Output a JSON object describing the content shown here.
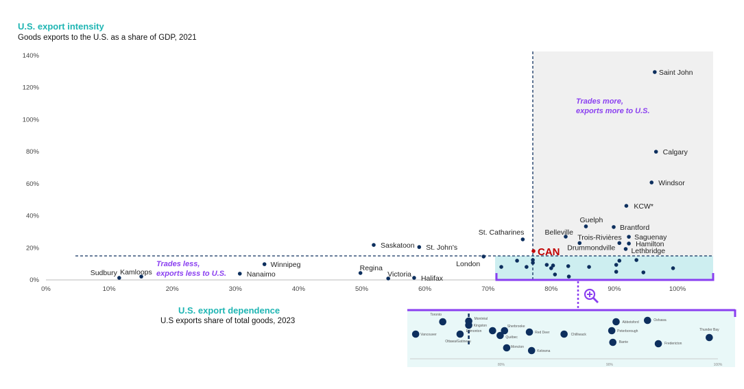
{
  "title": "U.S. export intensity",
  "subtitle": "Goods exports to the U.S. as a share of GDP, 2021",
  "x_title": "U.S. export dependence",
  "x_subtitle": "U.S exports share of total goods, 2023",
  "annotations": {
    "upper_right": [
      "Trades more,",
      "exports more to U.S."
    ],
    "lower_left": [
      "Trades less,",
      "exports less to U.S."
    ]
  },
  "colors": {
    "point": "#0d2f5e",
    "canada": "#c00000",
    "accent": "#8a3ff0",
    "title": "#1fb5b3",
    "upper_region": "#f0f0f0",
    "lower_region": "#cdeef0"
  },
  "chart_data": [
    {
      "type": "scatter",
      "xlabel": "U.S. export dependence",
      "ylabel": "U.S. export intensity",
      "xlim": [
        0,
        105
      ],
      "ylim": [
        0,
        140
      ],
      "xticks": [
        "0%",
        "10%",
        "20%",
        "30%",
        "40%",
        "50%",
        "60%",
        "70%",
        "80%",
        "90%",
        "100%"
      ],
      "yticks": [
        "0%",
        "20%",
        "40%",
        "60%",
        "80%",
        "100%",
        "120%",
        "140%"
      ],
      "reference_lines": {
        "x": 77.1,
        "y": 15
      },
      "grid": false,
      "points": [
        {
          "name": "Saint John",
          "x": 96.4,
          "y": 129.7
        },
        {
          "name": "Calgary",
          "x": 96.6,
          "y": 80
        },
        {
          "name": "Windsor",
          "x": 95.9,
          "y": 60.8
        },
        {
          "name": "KCW*",
          "x": 91.9,
          "y": 46.2
        },
        {
          "name": "Guelph",
          "x": 85.5,
          "y": 33.4
        },
        {
          "name": "Brantford",
          "x": 89.9,
          "y": 33
        },
        {
          "name": "Belleville",
          "x": 82.3,
          "y": 27
        },
        {
          "name": "Trois-Rivières",
          "x": 84.5,
          "y": 23
        },
        {
          "name": "Saguenay",
          "x": 92.3,
          "y": 26.9
        },
        {
          "name": "Hamilton",
          "x": 92.3,
          "y": 22.7
        },
        {
          "name": "Drummondville",
          "x": 90.8,
          "y": 23
        },
        {
          "name": "Lethbridge",
          "x": 91.8,
          "y": 19.3
        },
        {
          "name": "St. Catharines",
          "x": 75.5,
          "y": 25.3
        },
        {
          "name": "CAN",
          "x": 77.2,
          "y": 18
        },
        {
          "name": "Saskatoon",
          "x": 51.9,
          "y": 21.8
        },
        {
          "name": "St. John's",
          "x": 59.1,
          "y": 20.5
        },
        {
          "name": "London",
          "x": 69.3,
          "y": 14.6
        },
        {
          "name": "Winnipeg",
          "x": 34.6,
          "y": 9.8
        },
        {
          "name": "Regina",
          "x": 49.8,
          "y": 4.3
        },
        {
          "name": "Victoria",
          "x": 54.2,
          "y": 0.9
        },
        {
          "name": "Halifax",
          "x": 58.3,
          "y": 1.3
        },
        {
          "name": "Sudbury",
          "x": 11.6,
          "y": 1.3
        },
        {
          "name": "Kamloops",
          "x": 15.1,
          "y": 2.1
        },
        {
          "name": "Nanaimo",
          "x": 30.7,
          "y": 3.9
        },
        {
          "name": "",
          "x": 72.1,
          "y": 8.1
        },
        {
          "name": "",
          "x": 74.6,
          "y": 12.0
        },
        {
          "name": "",
          "x": 76.1,
          "y": 8.1
        },
        {
          "name": "",
          "x": 77.1,
          "y": 12.4
        },
        {
          "name": "",
          "x": 77.1,
          "y": 10.7
        },
        {
          "name": "",
          "x": 79.3,
          "y": 9.4
        },
        {
          "name": "",
          "x": 80.0,
          "y": 7.3
        },
        {
          "name": "",
          "x": 80.3,
          "y": 9.0
        },
        {
          "name": "",
          "x": 80.6,
          "y": 3.4
        },
        {
          "name": "",
          "x": 82.7,
          "y": 8.6
        },
        {
          "name": "",
          "x": 82.8,
          "y": 2.1
        },
        {
          "name": "",
          "x": 86.0,
          "y": 8.1
        },
        {
          "name": "",
          "x": 90.3,
          "y": 9.4
        },
        {
          "name": "",
          "x": 90.3,
          "y": 5.1
        },
        {
          "name": "",
          "x": 90.8,
          "y": 12.0
        },
        {
          "name": "",
          "x": 93.5,
          "y": 12.4
        },
        {
          "name": "",
          "x": 94.6,
          "y": 4.7
        },
        {
          "name": "",
          "x": 99.3,
          "y": 7.3
        }
      ]
    },
    {
      "type": "scatter",
      "xlim": [
        71.5,
        100
      ],
      "xticks": [
        "80%",
        "90%",
        "100%"
      ],
      "reference_lines": {
        "x": 77.0
      },
      "points": [
        {
          "name": "Toronto",
          "x": 74.6
        },
        {
          "name": "Vancouver",
          "x": 72.1
        },
        {
          "name": "Ottawa/Gatineau",
          "x": 76.2
        },
        {
          "name": "Montréal",
          "x": 77.0
        },
        {
          "name": "Kingston",
          "x": 77.0
        },
        {
          "name": "Edmonton",
          "x": 79.2
        },
        {
          "name": "Sherbrooke",
          "x": 80.3
        },
        {
          "name": "Québec",
          "x": 79.9
        },
        {
          "name": "Moncton",
          "x": 80.5
        },
        {
          "name": "Red Deer",
          "x": 82.6
        },
        {
          "name": "Kelowna",
          "x": 82.8
        },
        {
          "name": "Chilliwack",
          "x": 85.8
        },
        {
          "name": "Abbotsford",
          "x": 90.6
        },
        {
          "name": "Oshawa",
          "x": 93.5
        },
        {
          "name": "Peterborough",
          "x": 90.2
        },
        {
          "name": "Barrie",
          "x": 90.3
        },
        {
          "name": "Fredericton",
          "x": 94.5
        },
        {
          "name": "Thunder Bay",
          "x": 99.2
        }
      ]
    }
  ]
}
